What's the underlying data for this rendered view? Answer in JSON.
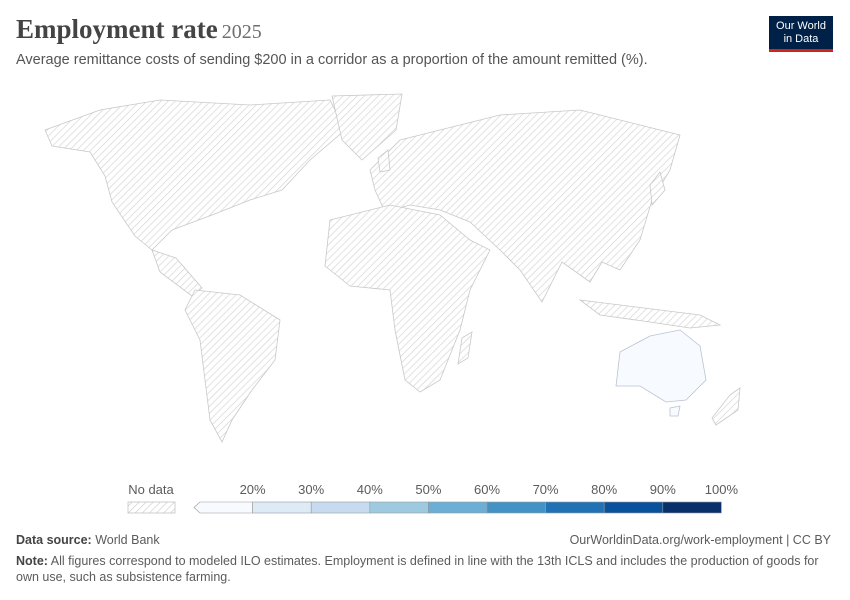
{
  "header": {
    "title": "Employment rate",
    "year": "2025",
    "subtitle": "Average remittance costs of sending $200 in a corridor as a proportion of the amount remitted (%).",
    "logo": [
      "Our World",
      "in Data"
    ]
  },
  "legend": {
    "no_data": "No data",
    "labels": [
      "20%",
      "30%",
      "40%",
      "50%",
      "60%",
      "70%",
      "80%",
      "90%",
      "100%"
    ],
    "colors": [
      "#f7fbff",
      "#deebf7",
      "#c6dbef",
      "#9ecae1",
      "#6baed6",
      "#4292c6",
      "#2171b5",
      "#08519c",
      "#08306b"
    ]
  },
  "footer": {
    "source_label": "Data source:",
    "source": "World Bank",
    "url": "OurWorldinData.org/work-employment | CC BY",
    "note_label": "Note:",
    "note": "All figures correspond to modeled ILO estimates. Employment is defined in line with the 13th ICLS and includes the production of goods for own use, such as subsistence farming."
  }
}
